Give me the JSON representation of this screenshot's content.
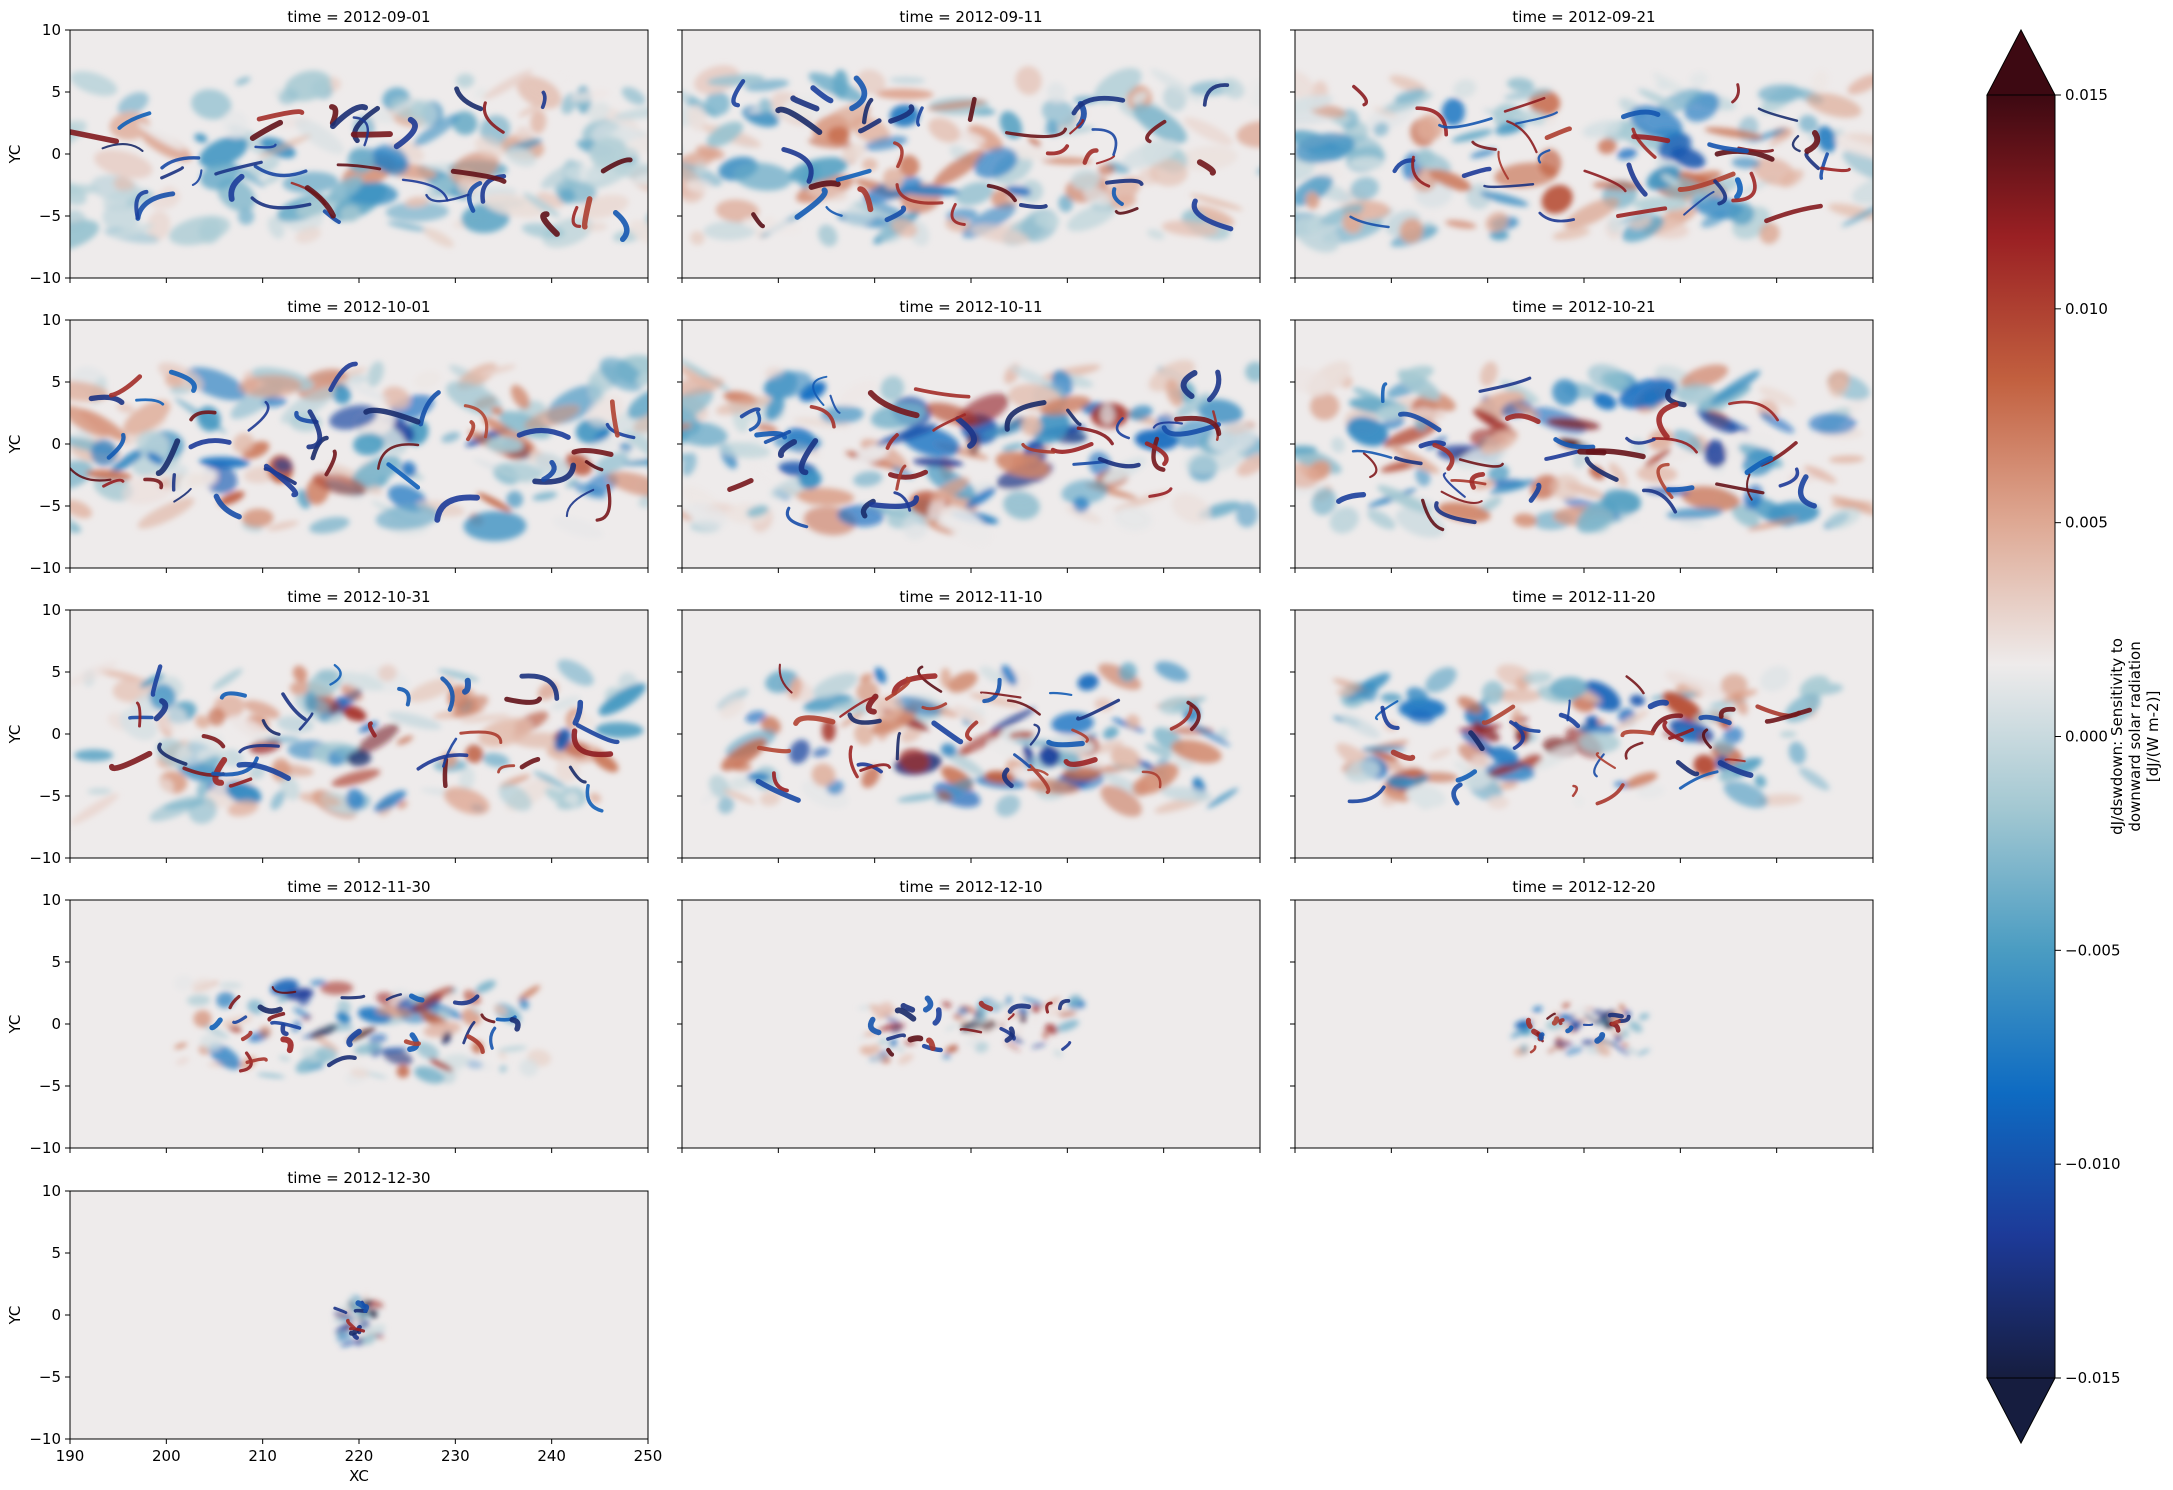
{
  "chart_data": {
    "type": "heatmap",
    "layout": "facet-grid",
    "columns": 3,
    "title_prefix": "time = ",
    "panels": [
      {
        "time": "2012-09-01",
        "activity": 0.55,
        "extent": 1.0
      },
      {
        "time": "2012-09-11",
        "activity": 0.75,
        "extent": 1.0
      },
      {
        "time": "2012-09-21",
        "activity": 0.85,
        "extent": 1.0
      },
      {
        "time": "2012-10-01",
        "activity": 0.95,
        "extent": 1.0
      },
      {
        "time": "2012-10-11",
        "activity": 1.05,
        "extent": 1.0
      },
      {
        "time": "2012-10-21",
        "activity": 1.05,
        "extent": 0.95
      },
      {
        "time": "2012-10-31",
        "activity": 1.05,
        "extent": 0.9
      },
      {
        "time": "2012-11-10",
        "activity": 1.15,
        "extent": 0.85
      },
      {
        "time": "2012-11-20",
        "activity": 1.15,
        "extent": 0.8
      },
      {
        "time": "2012-11-30",
        "activity": 1.3,
        "extent": 0.6
      },
      {
        "time": "2012-12-10",
        "activity": 1.4,
        "extent": 0.38
      },
      {
        "time": "2012-12-20",
        "activity": 1.5,
        "extent": 0.22
      },
      {
        "time": "2012-12-30",
        "activity": 1.8,
        "extent": 0.06
      }
    ],
    "xlabel": "XC",
    "ylabel": "YC",
    "xlim": [
      190,
      250
    ],
    "ylim": [
      -10,
      10
    ],
    "xticks": [
      "190",
      "200",
      "210",
      "220",
      "230",
      "240",
      "250"
    ],
    "yticks": [
      "10",
      "5",
      "0",
      "−5",
      "−10"
    ],
    "colorbar": {
      "label_lines": [
        "dJ/dswdown: Sensitivity to",
        "downward solar radiation",
        "[dJ/(W m-2)]"
      ],
      "vmin": -0.015,
      "vmax": 0.015,
      "extend": "both",
      "ticks": [
        "0.015",
        "0.010",
        "0.005",
        "0.000",
        "−0.005",
        "−0.010",
        "−0.015"
      ],
      "colormap_stops": [
        "#161d3f",
        "#1d3a98",
        "#0e6bc2",
        "#4a9cc2",
        "#a3c8d2",
        "#eeebeb",
        "#dea893",
        "#c2603f",
        "#9a2023",
        "#3d0912"
      ]
    }
  }
}
